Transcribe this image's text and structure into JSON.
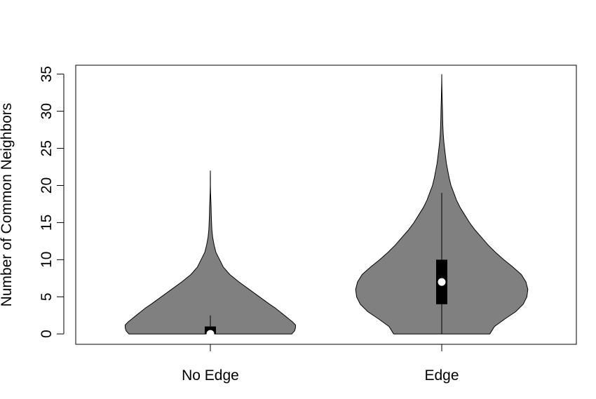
{
  "chart_data": {
    "type": "violin",
    "title": "",
    "xlabel": "",
    "ylabel": "Number of Common Neighbors",
    "ylim": [
      -1.4,
      36.2
    ],
    "yticks": [
      0,
      5,
      10,
      15,
      20,
      25,
      30,
      35
    ],
    "ytick_labels": [
      "0",
      "5",
      "10",
      "15",
      "20",
      "25",
      "30",
      "35"
    ],
    "grid": false,
    "legend": "none",
    "categories": [
      "No Edge",
      "Edge"
    ],
    "colors": {
      "violin_fill": "#808080",
      "violin_stroke": "#000000",
      "box_fill": "#000000",
      "median_dot": "#ffffff"
    },
    "series": [
      {
        "category": "No Edge",
        "summary": {
          "min": 0,
          "q1": 0,
          "median": 0,
          "q3": 1,
          "whisker_high": 2.5,
          "max": 22
        },
        "density": {
          "y": [
            0,
            0.4,
            0.8,
            1.2,
            1.6,
            2,
            2.5,
            3,
            3.5,
            4,
            5,
            6,
            7,
            8,
            9,
            10,
            11,
            12,
            13,
            14,
            15,
            16,
            17,
            18,
            19,
            20,
            21,
            22
          ],
          "half_width": [
            0.88,
            0.91,
            0.92,
            0.92,
            0.89,
            0.85,
            0.8,
            0.75,
            0.7,
            0.64,
            0.53,
            0.42,
            0.31,
            0.21,
            0.14,
            0.1,
            0.06,
            0.04,
            0.025,
            0.017,
            0.013,
            0.01,
            0.008,
            0.005,
            0.002,
            0.001,
            0.001,
            0
          ]
        }
      },
      {
        "category": "Edge",
        "summary": {
          "min": 0,
          "q1": 4,
          "median": 7,
          "q3": 10,
          "whisker_high": 19,
          "max": 35
        },
        "density": {
          "y": [
            0,
            1,
            2,
            3,
            4,
            5,
            6,
            7,
            8,
            9,
            10,
            11,
            12,
            13,
            14,
            15,
            16,
            17,
            18,
            19,
            20,
            21,
            22,
            23,
            24,
            25,
            26,
            27,
            28,
            29,
            30,
            31,
            32,
            33,
            34,
            35
          ],
          "half_width": [
            0.52,
            0.57,
            0.68,
            0.8,
            0.88,
            0.92,
            0.93,
            0.91,
            0.86,
            0.77,
            0.67,
            0.58,
            0.5,
            0.43,
            0.36,
            0.3,
            0.25,
            0.2,
            0.16,
            0.13,
            0.1,
            0.08,
            0.065,
            0.05,
            0.04,
            0.03,
            0.022,
            0.016,
            0.012,
            0.01,
            0.008,
            0.006,
            0.004,
            0.002,
            0.001,
            0
          ]
        }
      }
    ]
  }
}
